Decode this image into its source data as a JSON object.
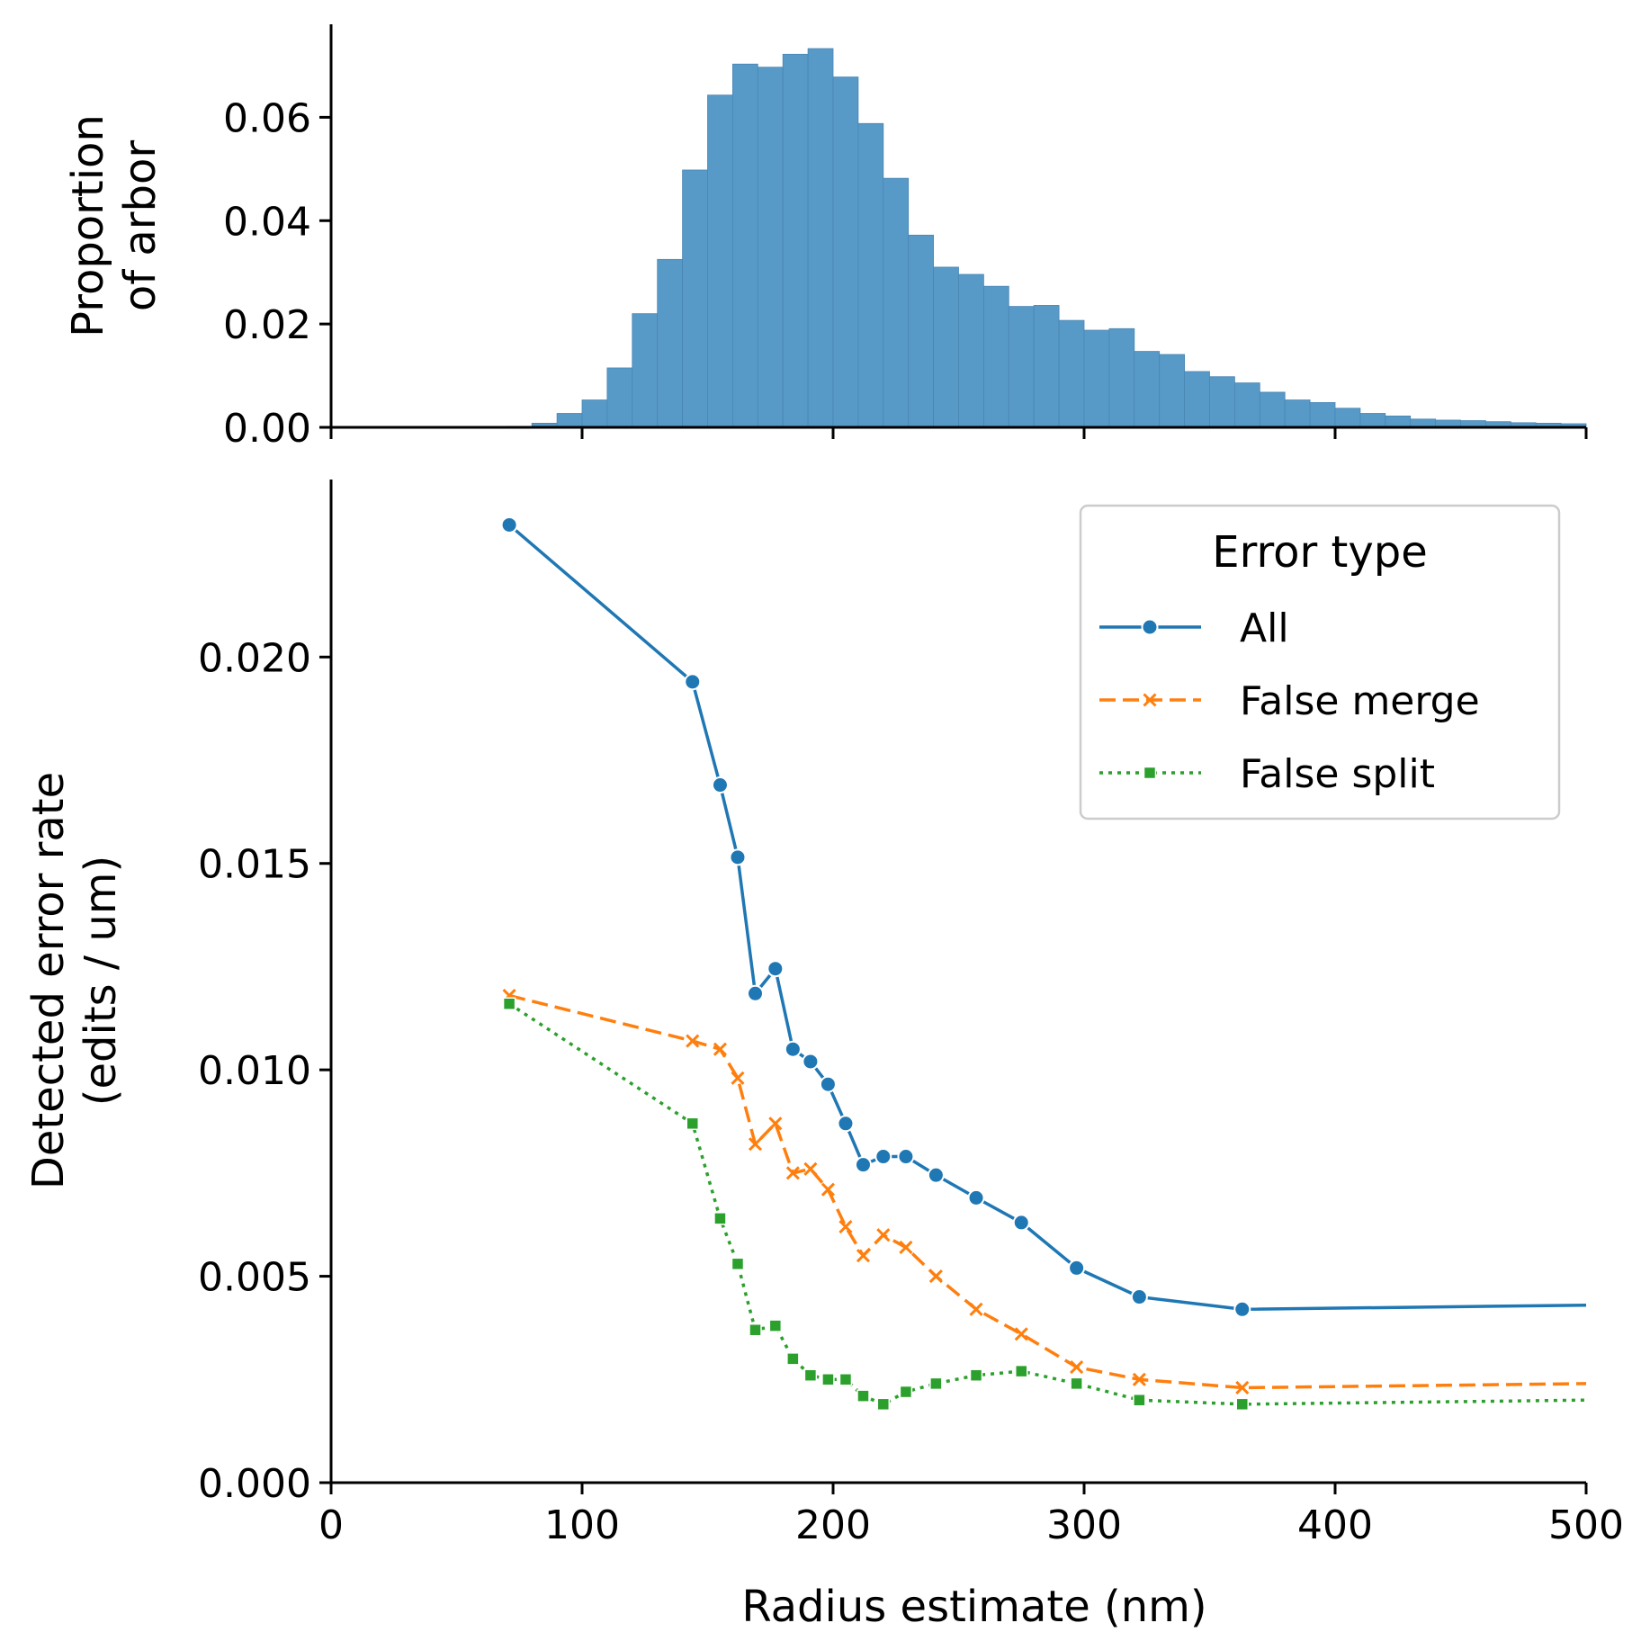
{
  "colors": {
    "all": "#1f77b4",
    "false_merge": "#ff7f0e",
    "false_split": "#2ca02c",
    "hist_fill": "#5799c7",
    "hist_edge": "#4a86b4"
  },
  "chart_data": [
    {
      "type": "bar",
      "subtype": "histogram",
      "ylabel_lines": [
        "Proportion",
        "of arbor"
      ],
      "xlim": [
        0,
        500
      ],
      "ylim": [
        0,
        0.078
      ],
      "yticks": [
        0,
        0.02,
        0.04,
        0.06
      ],
      "ytick_labels": [
        "0.00",
        "0.02",
        "0.04",
        "0.06"
      ],
      "bin_edges": [
        70,
        80,
        90,
        100,
        110,
        120,
        130,
        140,
        150,
        160,
        170,
        180,
        190,
        200,
        210,
        220,
        230,
        240,
        250,
        260,
        270,
        280,
        290,
        300,
        310,
        320,
        330,
        340,
        350,
        360,
        370,
        380,
        390,
        400,
        410,
        420,
        430,
        440,
        450,
        460,
        470,
        480,
        490,
        500
      ],
      "values": [
        0.0002,
        0.0008,
        0.0027,
        0.0053,
        0.0115,
        0.022,
        0.0325,
        0.0498,
        0.0643,
        0.0703,
        0.0697,
        0.0722,
        0.0733,
        0.0678,
        0.0588,
        0.0482,
        0.0372,
        0.031,
        0.0296,
        0.0273,
        0.0234,
        0.0236,
        0.0207,
        0.0188,
        0.0191,
        0.0147,
        0.0141,
        0.0108,
        0.0098,
        0.0086,
        0.0068,
        0.0053,
        0.0048,
        0.0037,
        0.0027,
        0.0022,
        0.0016,
        0.0014,
        0.0013,
        0.0011,
        0.0009,
        0.0008,
        0.0007
      ],
      "grid": false
    },
    {
      "type": "line",
      "xlabel": "Radius estimate (nm)",
      "ylabel_lines": [
        "Detected error rate",
        "(edits / um)"
      ],
      "xlim": [
        0,
        500
      ],
      "ylim": [
        0,
        0.0243
      ],
      "xticks": [
        0,
        100,
        200,
        300,
        400,
        500
      ],
      "xtick_labels": [
        "0",
        "100",
        "200",
        "300",
        "400",
        "500"
      ],
      "yticks": [
        0,
        0.005,
        0.01,
        0.015,
        0.02
      ],
      "ytick_labels": [
        "0.000",
        "0.005",
        "0.010",
        "0.015",
        "0.020"
      ],
      "grid": false,
      "legend": {
        "title": "Error type",
        "placement": "top-right"
      },
      "series": [
        {
          "name": "All",
          "marker": "circle",
          "dash": "solid",
          "x": [
            71,
            144,
            155,
            162,
            169,
            177,
            184,
            191,
            198,
            205,
            212,
            220,
            229,
            241,
            257,
            275,
            297,
            322,
            363,
            500
          ],
          "y": [
            0.0232,
            0.0194,
            0.0169,
            0.01515,
            0.01185,
            0.01245,
            0.0105,
            0.0102,
            0.00965,
            0.0087,
            0.0077,
            0.0079,
            0.0079,
            0.00745,
            0.0069,
            0.0063,
            0.0052,
            0.0045,
            0.0042,
            0.0043
          ],
          "markers_shown": 19
        },
        {
          "name": "False merge",
          "marker": "x",
          "dash": "dashed",
          "x": [
            71,
            144,
            155,
            162,
            169,
            177,
            184,
            191,
            198,
            205,
            212,
            220,
            229,
            241,
            257,
            275,
            297,
            322,
            363,
            500
          ],
          "y": [
            0.0118,
            0.0107,
            0.0105,
            0.0098,
            0.0082,
            0.0087,
            0.0075,
            0.0076,
            0.0071,
            0.0062,
            0.0055,
            0.006,
            0.0057,
            0.005,
            0.0042,
            0.0036,
            0.0028,
            0.0025,
            0.0023,
            0.0024
          ],
          "markers_shown": 19
        },
        {
          "name": "False split",
          "marker": "square",
          "dash": "dotted",
          "x": [
            71,
            144,
            155,
            162,
            169,
            177,
            184,
            191,
            198,
            205,
            212,
            220,
            229,
            241,
            257,
            275,
            297,
            322,
            363,
            500
          ],
          "y": [
            0.0116,
            0.0087,
            0.0064,
            0.0053,
            0.0037,
            0.0038,
            0.003,
            0.0026,
            0.0025,
            0.0025,
            0.0021,
            0.0019,
            0.0022,
            0.0024,
            0.0026,
            0.0027,
            0.0024,
            0.002,
            0.0019,
            0.002
          ],
          "markers_shown": 19
        }
      ]
    }
  ]
}
